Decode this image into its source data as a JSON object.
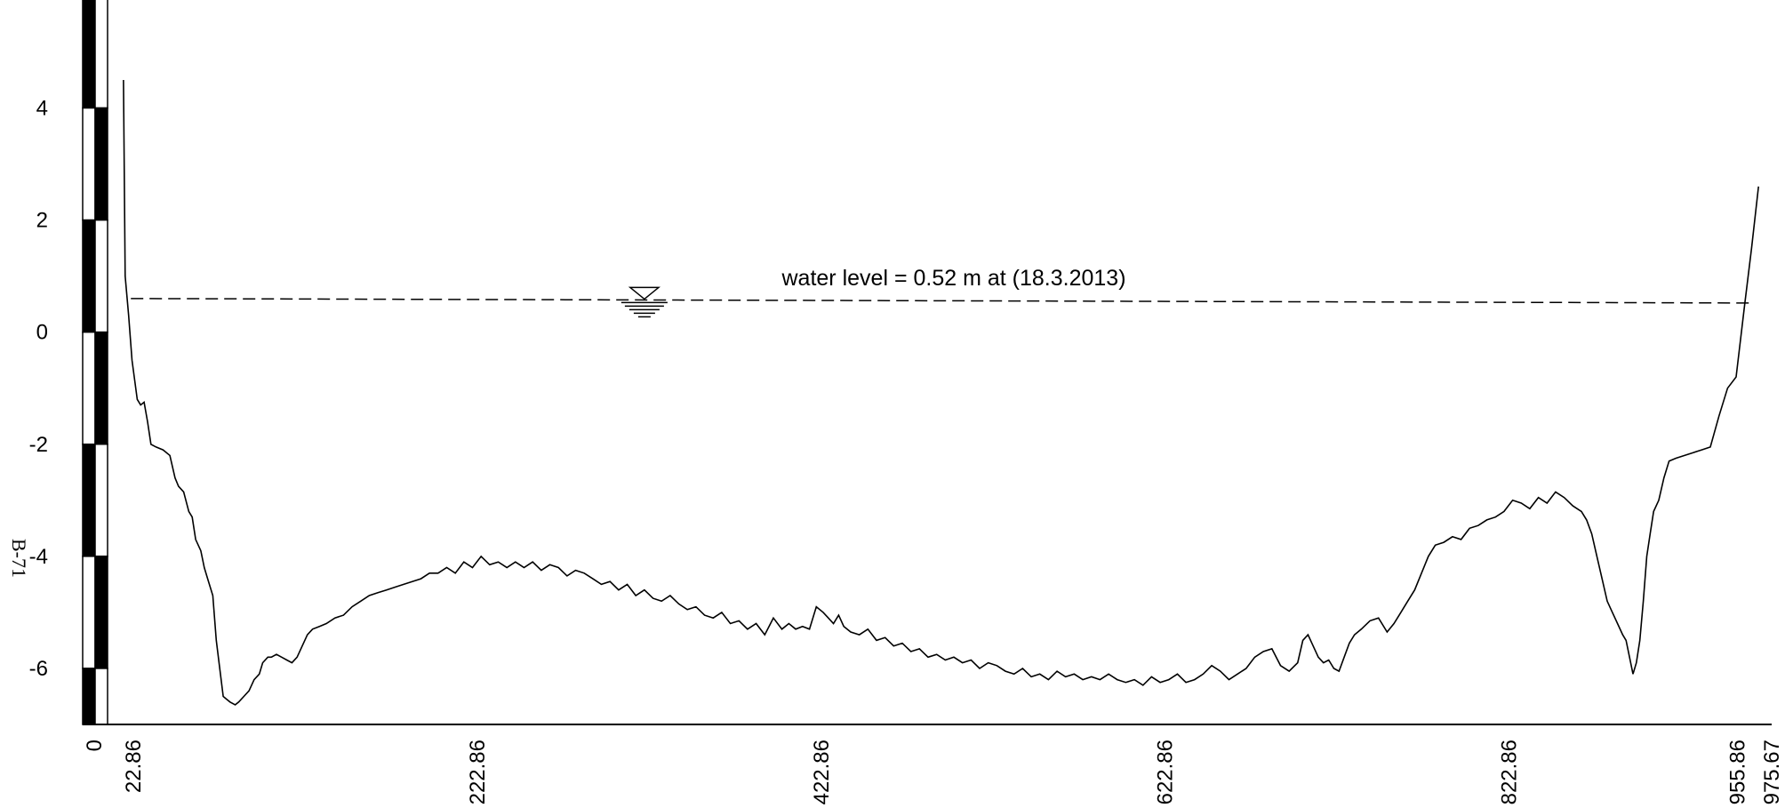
{
  "chart_data": {
    "type": "line",
    "title": "",
    "xlabel": "",
    "ylabel": "",
    "xlim": [
      0,
      975.67
    ],
    "ylim": [
      -7,
      5.8
    ],
    "x_ticks": [
      "0",
      "22.86",
      "222.86",
      "422.86",
      "622.86",
      "822.86",
      "955.86",
      "975.67"
    ],
    "y_ticks": [
      "4",
      "2",
      "0",
      "-2",
      "-4",
      "-6"
    ],
    "side_label": "B-71",
    "series": [
      {
        "points": [
          [
            17,
            4.5
          ],
          [
            18,
            1.0
          ],
          [
            20,
            0.3
          ],
          [
            22,
            -0.5
          ],
          [
            25,
            -1.2
          ],
          [
            27,
            -1.3
          ],
          [
            29,
            -1.25
          ],
          [
            31,
            -1.6
          ],
          [
            33,
            -2.0
          ],
          [
            36,
            -2.05
          ],
          [
            40,
            -2.1
          ],
          [
            44,
            -2.2
          ],
          [
            47,
            -2.6
          ],
          [
            49,
            -2.75
          ],
          [
            52,
            -2.85
          ],
          [
            55,
            -3.2
          ],
          [
            57,
            -3.3
          ],
          [
            59,
            -3.7
          ],
          [
            62,
            -3.9
          ],
          [
            64,
            -4.2
          ],
          [
            66,
            -4.4
          ],
          [
            69,
            -4.7
          ],
          [
            71,
            -5.5
          ],
          [
            73,
            -6.0
          ],
          [
            75,
            -6.5
          ],
          [
            77,
            -6.55
          ],
          [
            79,
            -6.6
          ],
          [
            82,
            -6.65
          ],
          [
            84,
            -6.6
          ],
          [
            87,
            -6.5
          ],
          [
            90,
            -6.4
          ],
          [
            93,
            -6.2
          ],
          [
            96,
            -6.1
          ],
          [
            98,
            -5.9
          ],
          [
            101,
            -5.8
          ],
          [
            103,
            -5.8
          ],
          [
            106,
            -5.75
          ],
          [
            109,
            -5.8
          ],
          [
            112,
            -5.85
          ],
          [
            115,
            -5.9
          ],
          [
            118,
            -5.8
          ],
          [
            121,
            -5.6
          ],
          [
            124,
            -5.4
          ],
          [
            127,
            -5.3
          ],
          [
            131,
            -5.25
          ],
          [
            135,
            -5.2
          ],
          [
            140,
            -5.1
          ],
          [
            145,
            -5.05
          ],
          [
            150,
            -4.9
          ],
          [
            155,
            -4.8
          ],
          [
            160,
            -4.7
          ],
          [
            165,
            -4.65
          ],
          [
            170,
            -4.6
          ],
          [
            175,
            -4.55
          ],
          [
            180,
            -4.5
          ],
          [
            185,
            -4.45
          ],
          [
            190,
            -4.4
          ],
          [
            195,
            -4.3
          ],
          [
            200,
            -4.3
          ],
          [
            205,
            -4.2
          ],
          [
            210,
            -4.3
          ],
          [
            215,
            -4.1
          ],
          [
            220,
            -4.2
          ],
          [
            225,
            -4.0
          ],
          [
            230,
            -4.15
          ],
          [
            235,
            -4.1
          ],
          [
            240,
            -4.2
          ],
          [
            245,
            -4.1
          ],
          [
            250,
            -4.2
          ],
          [
            255,
            -4.1
          ],
          [
            260,
            -4.25
          ],
          [
            265,
            -4.15
          ],
          [
            270,
            -4.2
          ],
          [
            275,
            -4.35
          ],
          [
            280,
            -4.25
          ],
          [
            285,
            -4.3
          ],
          [
            290,
            -4.4
          ],
          [
            295,
            -4.5
          ],
          [
            300,
            -4.45
          ],
          [
            305,
            -4.6
          ],
          [
            310,
            -4.5
          ],
          [
            315,
            -4.7
          ],
          [
            320,
            -4.6
          ],
          [
            325,
            -4.75
          ],
          [
            330,
            -4.8
          ],
          [
            335,
            -4.7
          ],
          [
            340,
            -4.85
          ],
          [
            345,
            -4.95
          ],
          [
            350,
            -4.9
          ],
          [
            355,
            -5.05
          ],
          [
            360,
            -5.1
          ],
          [
            365,
            -5.0
          ],
          [
            370,
            -5.2
          ],
          [
            375,
            -5.15
          ],
          [
            380,
            -5.3
          ],
          [
            385,
            -5.2
          ],
          [
            390,
            -5.4
          ],
          [
            395,
            -5.1
          ],
          [
            400,
            -5.3
          ],
          [
            404,
            -5.2
          ],
          [
            408,
            -5.3
          ],
          [
            412,
            -5.25
          ],
          [
            416,
            -5.3
          ],
          [
            420,
            -4.9
          ],
          [
            424,
            -5.0
          ],
          [
            427,
            -5.1
          ],
          [
            430,
            -5.2
          ],
          [
            433,
            -5.05
          ],
          [
            436,
            -5.25
          ],
          [
            440,
            -5.35
          ],
          [
            445,
            -5.4
          ],
          [
            450,
            -5.3
          ],
          [
            455,
            -5.5
          ],
          [
            460,
            -5.45
          ],
          [
            465,
            -5.6
          ],
          [
            470,
            -5.55
          ],
          [
            475,
            -5.7
          ],
          [
            480,
            -5.65
          ],
          [
            485,
            -5.8
          ],
          [
            490,
            -5.75
          ],
          [
            495,
            -5.85
          ],
          [
            500,
            -5.8
          ],
          [
            505,
            -5.9
          ],
          [
            510,
            -5.85
          ],
          [
            515,
            -6.0
          ],
          [
            520,
            -5.9
          ],
          [
            525,
            -5.95
          ],
          [
            530,
            -6.05
          ],
          [
            535,
            -6.1
          ],
          [
            540,
            -6.0
          ],
          [
            545,
            -6.15
          ],
          [
            550,
            -6.1
          ],
          [
            555,
            -6.2
          ],
          [
            560,
            -6.05
          ],
          [
            565,
            -6.15
          ],
          [
            570,
            -6.1
          ],
          [
            575,
            -6.2
          ],
          [
            580,
            -6.15
          ],
          [
            585,
            -6.2
          ],
          [
            590,
            -6.1
          ],
          [
            595,
            -6.2
          ],
          [
            600,
            -6.25
          ],
          [
            605,
            -6.2
          ],
          [
            610,
            -6.3
          ],
          [
            615,
            -6.15
          ],
          [
            620,
            -6.25
          ],
          [
            625,
            -6.2
          ],
          [
            630,
            -6.1
          ],
          [
            635,
            -6.25
          ],
          [
            640,
            -6.2
          ],
          [
            645,
            -6.1
          ],
          [
            650,
            -5.95
          ],
          [
            655,
            -6.05
          ],
          [
            660,
            -6.2
          ],
          [
            665,
            -6.1
          ],
          [
            670,
            -6.0
          ],
          [
            675,
            -5.8
          ],
          [
            680,
            -5.7
          ],
          [
            685,
            -5.65
          ],
          [
            690,
            -5.95
          ],
          [
            695,
            -6.05
          ],
          [
            700,
            -5.9
          ],
          [
            703,
            -5.5
          ],
          [
            706,
            -5.4
          ],
          [
            709,
            -5.6
          ],
          [
            712,
            -5.8
          ],
          [
            715,
            -5.9
          ],
          [
            718,
            -5.85
          ],
          [
            721,
            -6.0
          ],
          [
            724,
            -6.05
          ],
          [
            727,
            -5.8
          ],
          [
            730,
            -5.55
          ],
          [
            733,
            -5.4
          ],
          [
            737,
            -5.3
          ],
          [
            742,
            -5.15
          ],
          [
            747,
            -5.1
          ],
          [
            752,
            -5.35
          ],
          [
            756,
            -5.2
          ],
          [
            760,
            -5.0
          ],
          [
            764,
            -4.8
          ],
          [
            768,
            -4.6
          ],
          [
            772,
            -4.3
          ],
          [
            776,
            -4.0
          ],
          [
            780,
            -3.8
          ],
          [
            785,
            -3.75
          ],
          [
            790,
            -3.65
          ],
          [
            795,
            -3.7
          ],
          [
            800,
            -3.5
          ],
          [
            805,
            -3.45
          ],
          [
            810,
            -3.35
          ],
          [
            815,
            -3.3
          ],
          [
            820,
            -3.2
          ],
          [
            825,
            -3.0
          ],
          [
            830,
            -3.05
          ],
          [
            835,
            -3.15
          ],
          [
            840,
            -2.95
          ],
          [
            845,
            -3.05
          ],
          [
            850,
            -2.85
          ],
          [
            855,
            -2.95
          ],
          [
            860,
            -3.1
          ],
          [
            865,
            -3.2
          ],
          [
            868,
            -3.35
          ],
          [
            871,
            -3.6
          ],
          [
            874,
            -4.0
          ],
          [
            877,
            -4.4
          ],
          [
            880,
            -4.8
          ],
          [
            883,
            -5.0
          ],
          [
            886,
            -5.2
          ],
          [
            889,
            -5.4
          ],
          [
            891,
            -5.5
          ],
          [
            893,
            -5.8
          ],
          [
            895,
            -6.1
          ],
          [
            897,
            -5.9
          ],
          [
            899,
            -5.5
          ],
          [
            901,
            -4.8
          ],
          [
            903,
            -4.0
          ],
          [
            905,
            -3.6
          ],
          [
            907,
            -3.2
          ],
          [
            910,
            -3.0
          ],
          [
            913,
            -2.6
          ],
          [
            916,
            -2.3
          ],
          [
            920,
            -2.25
          ],
          [
            925,
            -2.2
          ],
          [
            930,
            -2.15
          ],
          [
            935,
            -2.1
          ],
          [
            940,
            -2.05
          ],
          [
            945,
            -1.5
          ],
          [
            950,
            -1.0
          ],
          [
            955,
            -0.8
          ],
          [
            960,
            0.5
          ],
          [
            964,
            1.5
          ],
          [
            968,
            2.6
          ]
        ]
      }
    ],
    "annotation": {
      "water_level": 0.52,
      "water_level_left": 0.6,
      "label": "water level = 0.52 m at (18.3.2013)",
      "symbol_x": 320
    }
  }
}
